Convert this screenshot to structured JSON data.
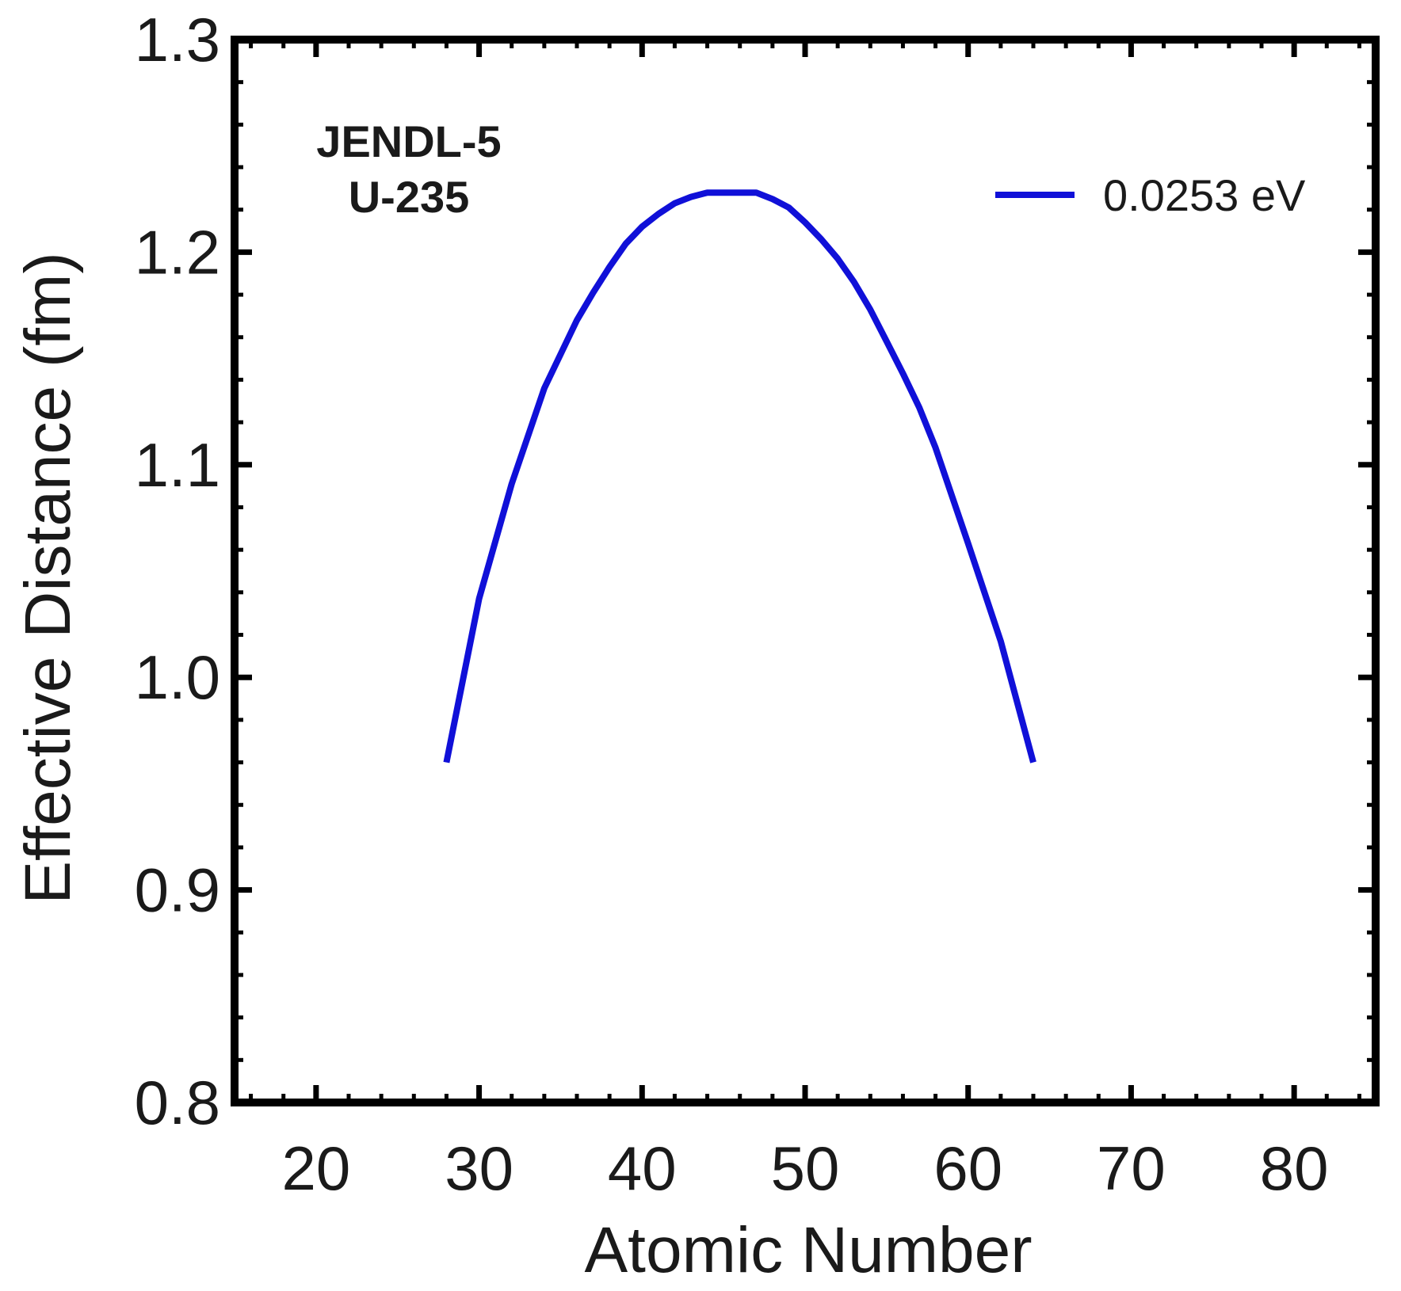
{
  "chart_data": {
    "type": "line",
    "title": "",
    "xlabel": "Atomic Number",
    "ylabel": "Effective Distance (fm)",
    "xlim": [
      15,
      85
    ],
    "ylim": [
      0.8,
      1.3
    ],
    "x_ticks": [
      20,
      30,
      40,
      50,
      60,
      70,
      80
    ],
    "x_tick_labels": [
      "20",
      "30",
      "40",
      "50",
      "60",
      "70",
      "80"
    ],
    "y_ticks": [
      0.8,
      0.9,
      1.0,
      1.1,
      1.2,
      1.3
    ],
    "y_tick_labels": [
      "0.8",
      "0.9",
      "1.0",
      "1.1",
      "1.2",
      "1.3"
    ],
    "grid": false,
    "legend_position": "top-right",
    "annotations": [
      "JENDL-5",
      "U-235"
    ],
    "series": [
      {
        "name": "0.0253 eV",
        "color": "#1010d8",
        "x": [
          28,
          30,
          32,
          34,
          36,
          37,
          38,
          39,
          40,
          41,
          42,
          43,
          44,
          45,
          46,
          47,
          48,
          49,
          50,
          51,
          52,
          53,
          54,
          55,
          56,
          57,
          58,
          60,
          62,
          64
        ],
        "y": [
          0.96,
          1.037,
          1.091,
          1.136,
          1.168,
          1.181,
          1.193,
          1.204,
          1.212,
          1.218,
          1.223,
          1.226,
          1.228,
          1.228,
          1.228,
          1.228,
          1.225,
          1.221,
          1.214,
          1.206,
          1.197,
          1.186,
          1.173,
          1.158,
          1.143,
          1.127,
          1.108,
          1.063,
          1.017,
          0.96
        ]
      }
    ]
  }
}
